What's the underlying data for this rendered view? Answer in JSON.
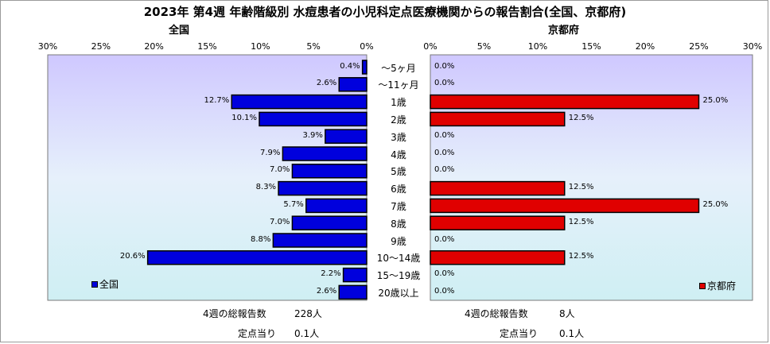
{
  "title": "2023年 第4週 年齢階級別 水痘患者の小児科定点医療機関からの報告割合(全国、京都府)",
  "colors": {
    "national": "#0000dd",
    "kyoto": "#e00000"
  },
  "chart_data": [
    {
      "type": "bar",
      "orientation": "horizontal-reversed",
      "panel_title": "全国",
      "legend": "全国",
      "xlim": [
        0,
        30
      ],
      "ticks": [
        "30%",
        "25%",
        "20%",
        "15%",
        "10%",
        "5%",
        "0%"
      ],
      "categories": [
        "～5ヶ月",
        "～11ヶ月",
        "1歳",
        "2歳",
        "3歳",
        "4歳",
        "5歳",
        "6歳",
        "7歳",
        "8歳",
        "9歳",
        "10～14歳",
        "15～19歳",
        "20歳以上"
      ],
      "values": [
        0.4,
        2.6,
        12.7,
        10.1,
        3.9,
        7.9,
        7.0,
        8.3,
        5.7,
        7.0,
        8.8,
        20.6,
        2.2,
        2.6
      ],
      "labels": [
        "0.4%",
        "2.6%",
        "12.7%",
        "10.1%",
        "3.9%",
        "7.9%",
        "7.0%",
        "8.3%",
        "5.7%",
        "7.0%",
        "8.8%",
        "20.6%",
        "2.2%",
        "2.6%"
      ],
      "footer": {
        "total_label": "4週の総報告数",
        "total_value": "228人",
        "per_label": "定点当り",
        "per_value": "0.1人"
      }
    },
    {
      "type": "bar",
      "orientation": "horizontal",
      "panel_title": "京都府",
      "legend": "京都府",
      "xlim": [
        0,
        30
      ],
      "ticks": [
        "0%",
        "5%",
        "10%",
        "15%",
        "20%",
        "25%",
        "30%"
      ],
      "categories": [
        "～5ヶ月",
        "～11ヶ月",
        "1歳",
        "2歳",
        "3歳",
        "4歳",
        "5歳",
        "6歳",
        "7歳",
        "8歳",
        "9歳",
        "10～14歳",
        "15～19歳",
        "20歳以上"
      ],
      "values": [
        0.0,
        0.0,
        25.0,
        12.5,
        0.0,
        0.0,
        0.0,
        12.5,
        25.0,
        12.5,
        0.0,
        12.5,
        0.0,
        0.0
      ],
      "labels": [
        "0.0%",
        "0.0%",
        "25.0%",
        "12.5%",
        "0.0%",
        "0.0%",
        "0.0%",
        "12.5%",
        "25.0%",
        "12.5%",
        "0.0%",
        "12.5%",
        "0.0%",
        "0.0%"
      ],
      "footer": {
        "total_label": "4週の総報告数",
        "total_value": "8人",
        "per_label": "定点当り",
        "per_value": "0.1人"
      }
    }
  ]
}
